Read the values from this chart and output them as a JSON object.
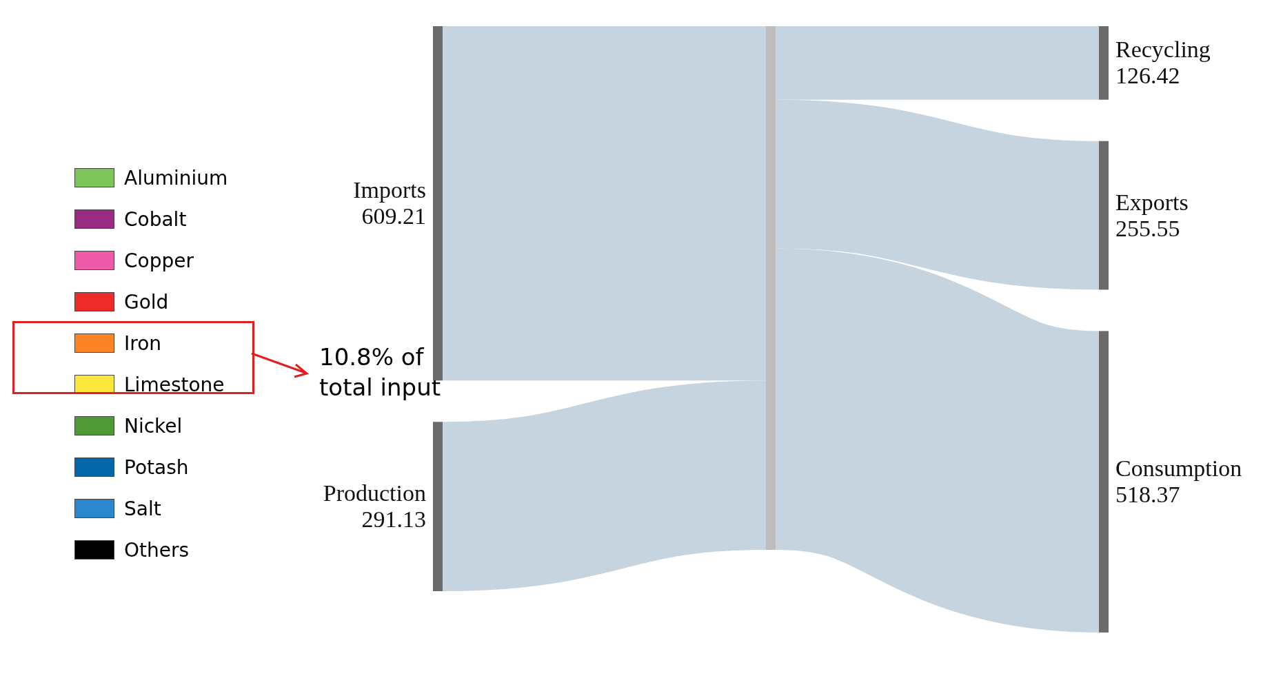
{
  "chart_data": {
    "type": "other",
    "categories": [
      "Imports",
      "Production",
      "Recycling",
      "Exports",
      "Consumption"
    ],
    "values": [
      609.21,
      291.13,
      126.42,
      255.55,
      518.37
    ],
    "data_labels": true,
    "series": [
      {
        "name": "Aluminium",
        "color": "#7dc45a",
        "values": [
          null,
          null,
          null,
          null,
          null
        ]
      },
      {
        "name": "Cobalt",
        "color": "#9b2a82",
        "values": [
          null,
          null,
          null,
          null,
          null
        ]
      },
      {
        "name": "Copper",
        "color": "#ec5aa8",
        "values": [
          null,
          null,
          null,
          null,
          null
        ]
      },
      {
        "name": "Gold",
        "color": "#ee2a2a",
        "values": [
          null,
          null,
          null,
          null,
          null
        ]
      },
      {
        "name": "Iron",
        "color": "#fb8424",
        "values": [
          null,
          null,
          null,
          null,
          null
        ]
      },
      {
        "name": "Limestone",
        "color": "#fbe83a",
        "values": [
          null,
          null,
          null,
          null,
          null
        ]
      },
      {
        "name": "Nickel",
        "color": "#4f9a37",
        "values": [
          null,
          null,
          null,
          null,
          null
        ]
      },
      {
        "name": "Potash",
        "color": "#0467aa",
        "values": [
          null,
          null,
          null,
          null,
          null
        ]
      },
      {
        "name": "Salt",
        "color": "#2c88cc",
        "values": [
          null,
          null,
          null,
          null,
          null
        ]
      },
      {
        "name": "Others",
        "color": "#000000",
        "values": [
          null,
          null,
          null,
          null,
          null
        ]
      }
    ],
    "legend": "left",
    "annotations": [
      "10.8% of total input"
    ]
  }
}
